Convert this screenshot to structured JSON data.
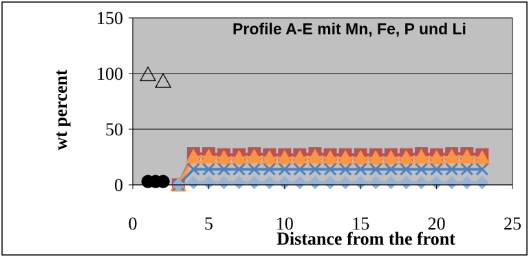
{
  "chart_data": {
    "type": "scatter",
    "title": "Profile A-E mit Mn, Fe, P und Li",
    "xlabel": "Distance from the front",
    "ylabel": "wt percent",
    "xlim": [
      0,
      25
    ],
    "ylim": [
      0,
      150
    ],
    "xticks": [
      "0",
      "5",
      "10",
      "15",
      "20",
      "25"
    ],
    "yticks": [
      "0",
      "50",
      "100",
      "150"
    ],
    "grid": "horizontal major gridlines",
    "plot_background": "#c0c0c0",
    "legend": "none",
    "series": [
      {
        "marker": "open-triangle",
        "color": "#000000",
        "line": false,
        "x": [
          1,
          2
        ],
        "y": [
          99,
          93
        ]
      },
      {
        "marker": "circle",
        "color": "#000000",
        "line": false,
        "x": [
          1,
          1.5,
          2
        ],
        "y": [
          3,
          3,
          3
        ]
      },
      {
        "marker": "square",
        "color": "#c0504d",
        "line": true,
        "x": [
          3,
          4,
          5,
          6,
          7,
          8,
          9,
          10,
          11,
          12,
          13,
          14,
          15,
          16,
          17,
          18,
          19,
          20,
          21,
          22,
          23
        ],
        "y": [
          0,
          28,
          28,
          27,
          27,
          28,
          27,
          27,
          27,
          28,
          27,
          27,
          27,
          27,
          27,
          27,
          28,
          27,
          28,
          28,
          27
        ]
      },
      {
        "marker": "triangle",
        "color": "#f79646",
        "line": true,
        "x": [
          3,
          4,
          5,
          6,
          7,
          8,
          9,
          10,
          11,
          12,
          13,
          14,
          15,
          16,
          17,
          18,
          19,
          20,
          21,
          22,
          23
        ],
        "y": [
          0,
          25,
          25,
          24,
          24,
          25,
          24,
          24,
          24,
          25,
          24,
          24,
          24,
          24,
          24,
          24,
          25,
          24,
          25,
          25,
          24
        ]
      },
      {
        "marker": "x",
        "color": "#4f81bd",
        "line": true,
        "x": [
          3,
          4,
          5,
          6,
          7,
          8,
          9,
          10,
          11,
          12,
          13,
          14,
          15,
          16,
          17,
          18,
          19,
          20,
          21,
          22,
          23
        ],
        "y": [
          0,
          14,
          14,
          14,
          14,
          14,
          14,
          14,
          14,
          14,
          14,
          14,
          14,
          14,
          14,
          14,
          14,
          14,
          14,
          14,
          14
        ]
      },
      {
        "marker": "diamond",
        "color": "#95b3d7",
        "line": true,
        "x": [
          3,
          4,
          5,
          6,
          7,
          8,
          9,
          10,
          11,
          12,
          13,
          14,
          15,
          16,
          17,
          18,
          19,
          20,
          21,
          22,
          23
        ],
        "y": [
          0,
          2,
          2,
          2,
          2,
          2,
          2,
          2,
          2,
          2,
          2,
          2,
          2,
          2,
          2,
          2,
          2,
          2,
          2,
          2,
          2
        ]
      }
    ]
  }
}
